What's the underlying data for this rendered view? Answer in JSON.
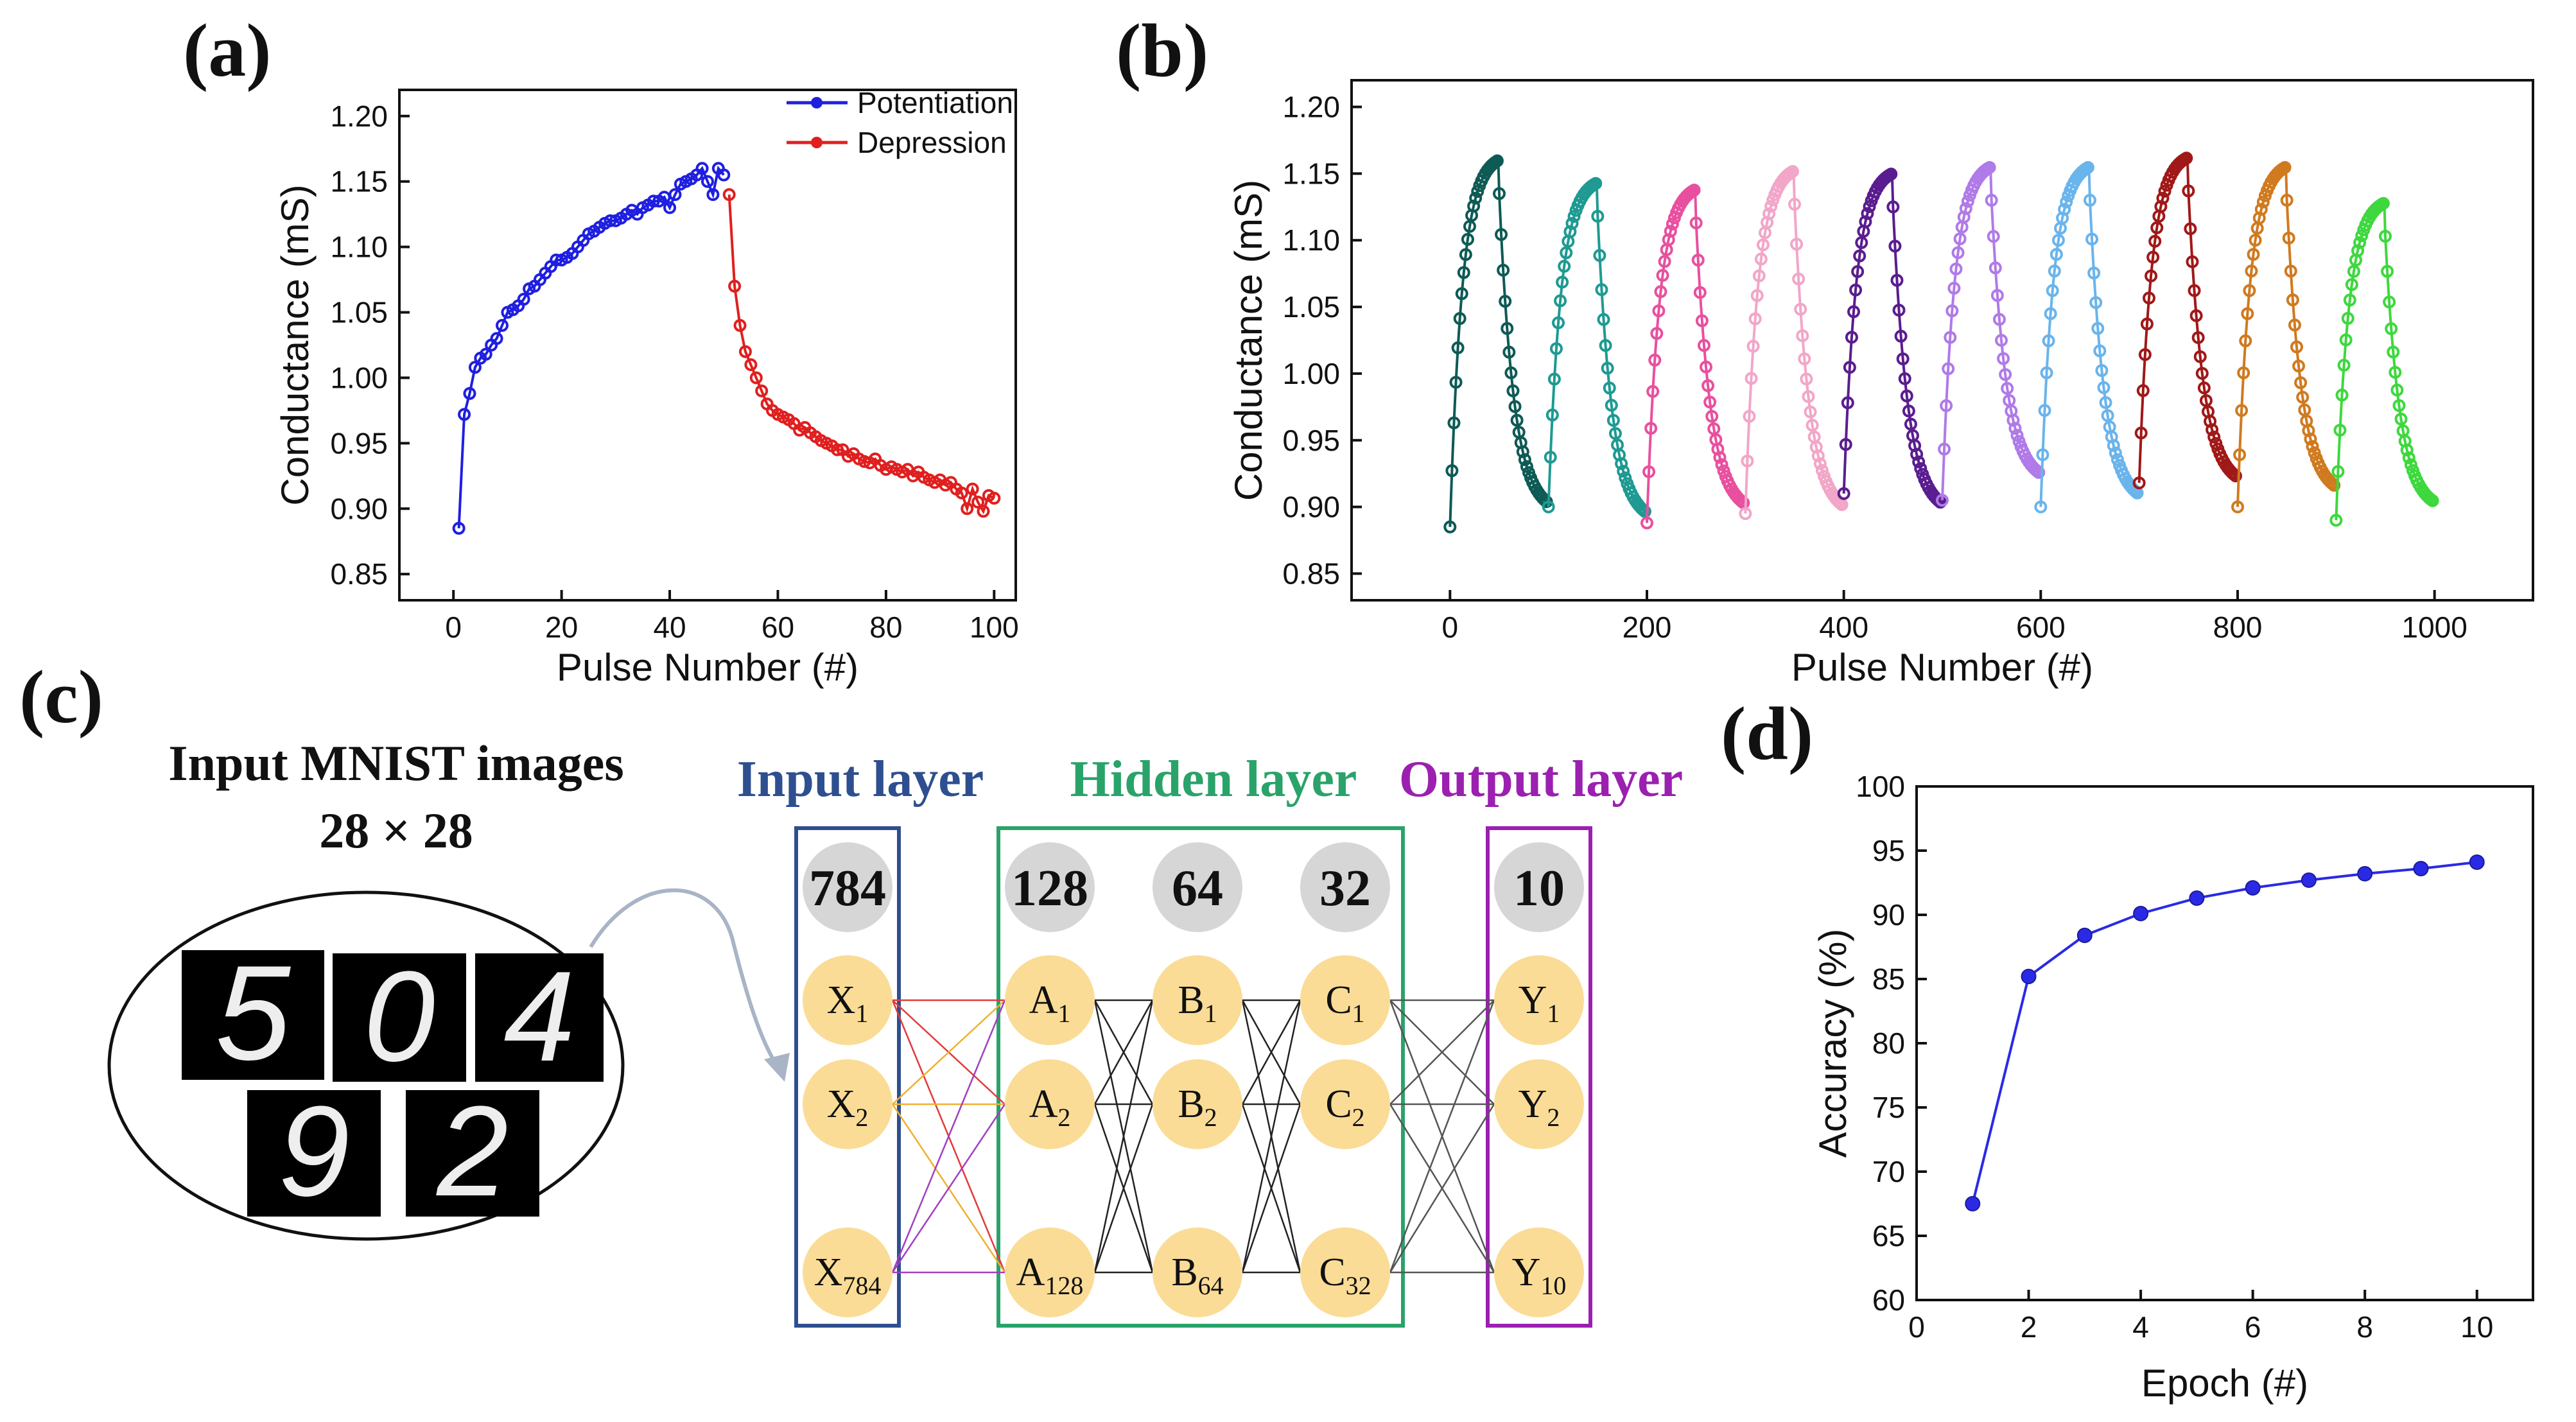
{
  "panels": {
    "a": "(a)",
    "b": "(b)",
    "c": "(c)",
    "d": "(d)"
  },
  "colors": {
    "potentiation": "#1f1fe0",
    "depression": "#e01f1f",
    "accuracy": "#2a2ae6",
    "input_layer": "#2e4f8f",
    "hidden_layer": "#2aa36a",
    "output_layer": "#9b20b0",
    "node_fill": "#fadc96",
    "count_fill": "#d6d6d6"
  },
  "chart_data": [
    {
      "id": "a",
      "type": "line",
      "title": "",
      "xlabel": "Pulse Number (#)",
      "ylabel": "Conductance (mS)",
      "xlim": [
        -10,
        104
      ],
      "ylim": [
        0.83,
        1.22
      ],
      "xticks": [
        0,
        20,
        40,
        60,
        80,
        100
      ],
      "yticks": [
        0.85,
        0.9,
        0.95,
        1.0,
        1.05,
        1.1,
        1.15,
        1.2
      ],
      "xtick_labels": [
        "0",
        "20",
        "40",
        "60",
        "80",
        "100"
      ],
      "ytick_labels": [
        "0.85",
        "0.90",
        "0.95",
        "1.00",
        "1.05",
        "1.10",
        "1.15",
        "1.20"
      ],
      "legend": [
        "Potentiation",
        "Depression"
      ],
      "legend_position": "top-right",
      "series": [
        {
          "name": "Potentiation",
          "color": "#1f1fe0",
          "x_start": 1,
          "values": [
            0.885,
            0.972,
            0.988,
            1.008,
            1.015,
            1.018,
            1.025,
            1.03,
            1.04,
            1.05,
            1.052,
            1.055,
            1.06,
            1.068,
            1.07,
            1.075,
            1.08,
            1.085,
            1.09,
            1.09,
            1.092,
            1.095,
            1.1,
            1.105,
            1.11,
            1.112,
            1.115,
            1.118,
            1.12,
            1.12,
            1.122,
            1.125,
            1.128,
            1.125,
            1.13,
            1.132,
            1.135,
            1.135,
            1.138,
            1.13,
            1.14,
            1.148,
            1.15,
            1.152,
            1.155,
            1.16,
            1.15,
            1.14,
            1.16,
            1.155
          ]
        },
        {
          "name": "Depression",
          "color": "#e01f1f",
          "x_start": 51,
          "values": [
            1.14,
            1.07,
            1.04,
            1.02,
            1.01,
            1.0,
            0.99,
            0.98,
            0.975,
            0.972,
            0.97,
            0.968,
            0.965,
            0.96,
            0.962,
            0.958,
            0.955,
            0.952,
            0.95,
            0.948,
            0.945,
            0.945,
            0.94,
            0.942,
            0.938,
            0.936,
            0.935,
            0.938,
            0.933,
            0.93,
            0.932,
            0.93,
            0.928,
            0.93,
            0.925,
            0.928,
            0.924,
            0.922,
            0.92,
            0.922,
            0.918,
            0.92,
            0.915,
            0.912,
            0.9,
            0.915,
            0.905,
            0.898,
            0.91,
            0.908
          ]
        }
      ]
    },
    {
      "id": "b",
      "type": "line",
      "title": "",
      "xlabel": "Pulse Number (#)",
      "ylabel": "Conductance (mS)",
      "xlim": [
        -100,
        1100
      ],
      "ylim": [
        0.83,
        1.22
      ],
      "xticks": [
        0,
        200,
        400,
        600,
        800,
        1000
      ],
      "yticks": [
        0.85,
        0.9,
        0.95,
        1.0,
        1.05,
        1.1,
        1.15,
        1.2
      ],
      "xtick_labels": [
        "0",
        "200",
        "400",
        "600",
        "800",
        "1000"
      ],
      "ytick_labels": [
        "0.85",
        "0.90",
        "0.95",
        "1.00",
        "1.05",
        "1.10",
        "1.15",
        "1.20"
      ],
      "cycles": [
        {
          "start": 0,
          "color": "#0e5a55",
          "min": 0.885,
          "max": 1.16,
          "end": 0.895
        },
        {
          "start": 100,
          "color": "#1e9a92",
          "min": 0.9,
          "max": 1.143,
          "end": 0.888
        },
        {
          "start": 200,
          "color": "#e8509f",
          "min": 0.888,
          "max": 1.138,
          "end": 0.895
        },
        {
          "start": 300,
          "color": "#f2a6c8",
          "min": 0.895,
          "max": 1.152,
          "end": 0.893
        },
        {
          "start": 400,
          "color": "#5a1d8f",
          "min": 0.91,
          "max": 1.15,
          "end": 0.895
        },
        {
          "start": 500,
          "color": "#b07ae8",
          "min": 0.905,
          "max": 1.155,
          "end": 0.918
        },
        {
          "start": 600,
          "color": "#6ab4ec",
          "min": 0.9,
          "max": 1.155,
          "end": 0.902
        },
        {
          "start": 700,
          "color": "#a01818",
          "min": 0.918,
          "max": 1.162,
          "end": 0.915
        },
        {
          "start": 800,
          "color": "#d07a1f",
          "min": 0.9,
          "max": 1.155,
          "end": 0.908
        },
        {
          "start": 900,
          "color": "#3ed83e",
          "min": 0.89,
          "max": 1.128,
          "end": 0.897
        }
      ]
    },
    {
      "id": "d",
      "type": "line",
      "title": "",
      "xlabel": "Epoch (#)",
      "ylabel": "Accuracy (%)",
      "xlim": [
        0,
        11
      ],
      "ylim": [
        60,
        100
      ],
      "xticks": [
        0,
        2,
        4,
        6,
        8,
        10
      ],
      "yticks": [
        60,
        65,
        70,
        75,
        80,
        85,
        90,
        95,
        100
      ],
      "xtick_labels": [
        "0",
        "2",
        "4",
        "6",
        "8",
        "10"
      ],
      "ytick_labels": [
        "60",
        "65",
        "70",
        "75",
        "80",
        "85",
        "90",
        "95",
        "100"
      ],
      "series": [
        {
          "name": "Accuracy",
          "color": "#2a2ae6",
          "x": [
            1,
            2,
            3,
            4,
            5,
            6,
            7,
            8,
            9,
            10
          ],
          "values": [
            67.5,
            85.2,
            88.4,
            90.1,
            91.3,
            92.1,
            92.7,
            93.2,
            93.6,
            94.1
          ]
        }
      ]
    }
  ],
  "diagram": {
    "mnist_title_line1": "Input MNIST images",
    "mnist_title_line2": "28 × 28",
    "digits": [
      "5",
      "0",
      "4",
      "9",
      "2"
    ],
    "input_layer_title": "Input layer",
    "hidden_layer_title": "Hidden layer",
    "output_layer_title": "Output layer",
    "layers": [
      {
        "count": "784",
        "prefix": "X",
        "subs": [
          "1",
          "2",
          "784"
        ]
      },
      {
        "count": "128",
        "prefix": "A",
        "subs": [
          "1",
          "2",
          "128"
        ]
      },
      {
        "count": "64",
        "prefix": "B",
        "subs": [
          "1",
          "2",
          "64"
        ]
      },
      {
        "count": "32",
        "prefix": "C",
        "subs": [
          "1",
          "2",
          "32"
        ]
      },
      {
        "count": "10",
        "prefix": "Y",
        "subs": [
          "1",
          "2",
          "10"
        ]
      }
    ]
  }
}
